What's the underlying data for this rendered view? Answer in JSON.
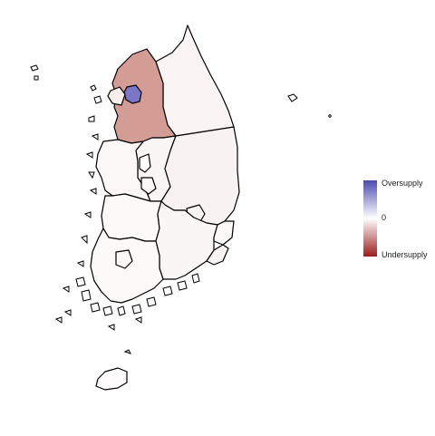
{
  "legend": {
    "top_label": "Oversupply",
    "mid_label": "0",
    "bottom_label": "Undersupply",
    "colors": {
      "high": "#4b4bb0",
      "mid": "#ffffff",
      "low": "#9b1c1c"
    }
  },
  "regions": [
    {
      "name": "gyeonggi",
      "value": -0.55,
      "fill": "#d39c94"
    },
    {
      "name": "seoul",
      "value": 0.7,
      "fill": "#7d76c6"
    },
    {
      "name": "incheon",
      "value": -0.05,
      "fill": "#f6eeec"
    },
    {
      "name": "gangwon",
      "value": -0.02,
      "fill": "#faf5f4"
    },
    {
      "name": "chungbuk",
      "value": -0.02,
      "fill": "#faf6f5"
    },
    {
      "name": "chungnam",
      "value": -0.01,
      "fill": "#fcf8f8"
    },
    {
      "name": "sejong",
      "value": 0.0,
      "fill": "#fdfbfb"
    },
    {
      "name": "daejeon",
      "value": -0.01,
      "fill": "#fbf7f7"
    },
    {
      "name": "gyeongbuk",
      "value": -0.03,
      "fill": "#f8f2f2"
    },
    {
      "name": "jeonbuk",
      "value": -0.01,
      "fill": "#fcf9f9"
    },
    {
      "name": "daegu",
      "value": -0.02,
      "fill": "#f9f4f4"
    },
    {
      "name": "gyeongnam",
      "value": -0.02,
      "fill": "#faf6f6"
    },
    {
      "name": "ulsan",
      "value": -0.01,
      "fill": "#fbf8f8"
    },
    {
      "name": "busan",
      "value": -0.02,
      "fill": "#f9f4f4"
    },
    {
      "name": "jeonnam",
      "value": -0.01,
      "fill": "#fcf9f9"
    },
    {
      "name": "gwangju",
      "value": -0.01,
      "fill": "#fbf7f7"
    },
    {
      "name": "jeju",
      "value": 0.0,
      "fill": "#fdfbfb"
    }
  ]
}
